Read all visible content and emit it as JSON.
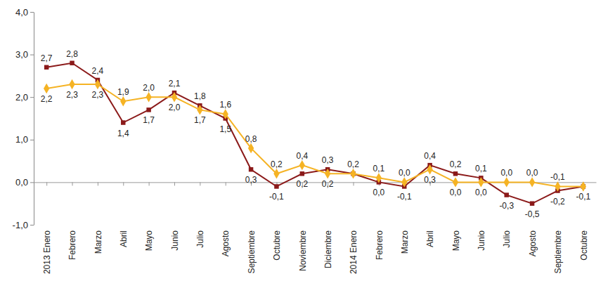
{
  "chart_data": {
    "type": "line",
    "categories": [
      "2013 Enero",
      "Febrero",
      "Marzo",
      "Abril",
      "Mayo",
      "Junio",
      "Julio",
      "Agosto",
      "Septiembre",
      "Octubre",
      "Noviembre",
      "Diciembre",
      "2014 Enero",
      "Febrero",
      "Marzo",
      "Abril",
      "Mayo",
      "Junio",
      "Julio",
      "Agosto",
      "Septiembre",
      "Octubre"
    ],
    "series": [
      {
        "color": "#8b1a1a",
        "marker": "square",
        "values": [
          2.7,
          2.8,
          2.4,
          1.4,
          1.7,
          2.1,
          1.8,
          1.5,
          0.3,
          -0.1,
          0.2,
          0.3,
          0.2,
          0.0,
          -0.1,
          0.4,
          0.2,
          0.1,
          -0.3,
          -0.5,
          -0.2,
          -0.1
        ],
        "value_labels": [
          "2,7",
          "2,8",
          "2,4",
          "1,4",
          "1,7",
          "2,1",
          "1,8",
          "1,5",
          "0,3",
          "-0,1",
          "0,2",
          "0,3",
          "0,2",
          "0,0",
          "-0,1",
          "0,4",
          "0,2",
          "0,1",
          "-0,3",
          "-0,5",
          "-0,2",
          null
        ]
      },
      {
        "color": "#f5b324",
        "marker": "diamond",
        "values": [
          2.2,
          2.3,
          2.3,
          1.9,
          2.0,
          2.0,
          1.7,
          1.6,
          0.8,
          0.2,
          0.4,
          0.2,
          0.2,
          0.1,
          0.0,
          0.3,
          0.0,
          0.0,
          0.0,
          0.0,
          -0.1,
          -0.1
        ],
        "value_labels": [
          "2,2",
          "2,3",
          "2,3",
          "1,9",
          "2,0",
          "2,0",
          "1,7",
          "1,6",
          "0,8",
          "0,2",
          "0,4",
          "0,2",
          null,
          "0,1",
          "0,0",
          "0,3",
          "0,0",
          "0,0",
          "0,0",
          "0,0",
          "-0,1",
          "-0,1"
        ]
      }
    ],
    "ylim": [
      -1,
      4
    ],
    "yticks": [
      {
        "value": -1,
        "label": "-1,0"
      },
      {
        "value": 0,
        "label": "0,0"
      },
      {
        "value": 1,
        "label": "1,0"
      },
      {
        "value": 2,
        "label": "2,0"
      },
      {
        "value": 3,
        "label": "3,0"
      },
      {
        "value": 4,
        "label": "4,0"
      }
    ],
    "grid": false,
    "data_labels": true
  }
}
